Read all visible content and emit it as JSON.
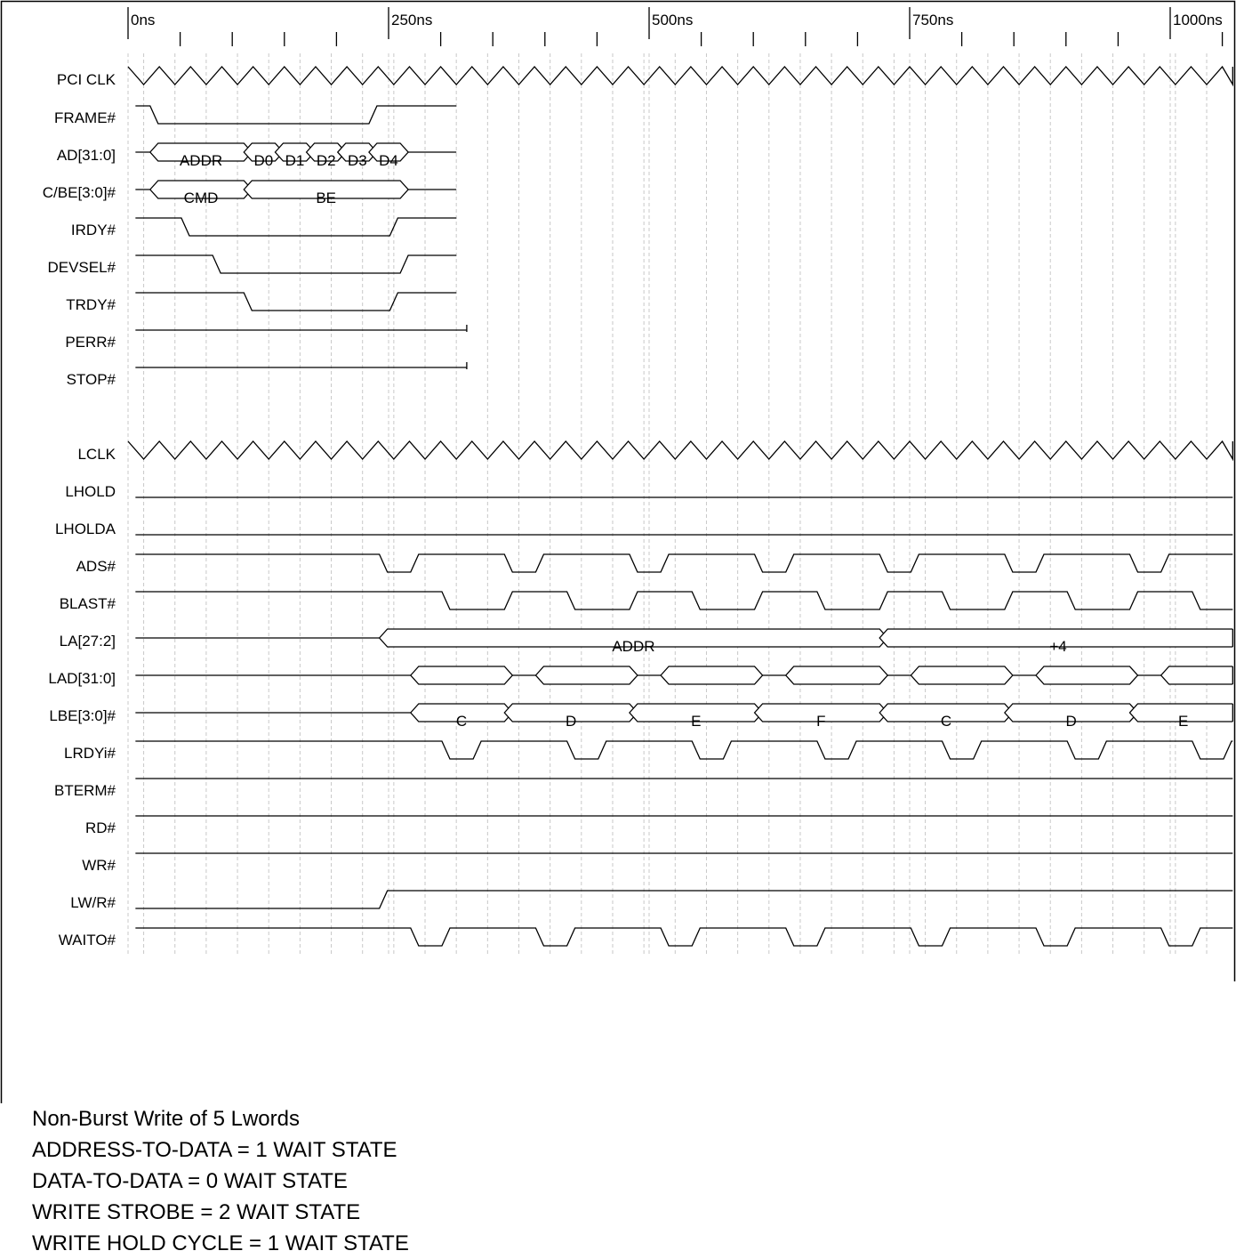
{
  "time_axis": {
    "unit": "ns",
    "majors": [
      {
        "t": 0,
        "label": "0ns"
      },
      {
        "t": 250,
        "label": "250ns"
      },
      {
        "t": 500,
        "label": "500ns"
      },
      {
        "t": 750,
        "label": "750ns"
      },
      {
        "t": 1000,
        "label": "1000ns"
      }
    ],
    "minor_step_ns": 50,
    "grid_step_ns": 30,
    "grid_start_ns": 15,
    "end_ns": 1060
  },
  "clocks": [
    {
      "id": "pci-clk",
      "label": "PCI CLK",
      "period_ns": 30,
      "start_ns": 0
    },
    {
      "id": "lclk",
      "label": "LCLK",
      "period_ns": 30,
      "start_ns": 0
    }
  ],
  "signals": [
    {
      "id": "frame",
      "label": "FRAME#",
      "kind": "level",
      "init": "high",
      "edges": [
        25,
        235
      ],
      "end": 315
    },
    {
      "id": "ad-31-0",
      "label": "AD[31:0]",
      "kind": "bus",
      "end": 315,
      "segments": [
        {
          "from": 25,
          "to": 115,
          "label": "ADDR"
        },
        {
          "from": 115,
          "to": 145,
          "label": "D0"
        },
        {
          "from": 145,
          "to": 175,
          "label": "D1"
        },
        {
          "from": 175,
          "to": 205,
          "label": "D2"
        },
        {
          "from": 205,
          "to": 235,
          "label": "D3"
        },
        {
          "from": 235,
          "to": 265,
          "label": "D4"
        }
      ]
    },
    {
      "id": "c-be-3-0",
      "label": "C/BE[3:0]#",
      "kind": "bus",
      "end": 315,
      "segments": [
        {
          "from": 25,
          "to": 115,
          "label": "CMD"
        },
        {
          "from": 115,
          "to": 265,
          "label": "BE"
        }
      ]
    },
    {
      "id": "irdy",
      "label": "IRDY#",
      "kind": "level",
      "init": "high",
      "edges": [
        55,
        255
      ],
      "end": 315
    },
    {
      "id": "devsel",
      "label": "DEVSEL#",
      "kind": "level",
      "init": "high",
      "edges": [
        85,
        265
      ],
      "end": 315
    },
    {
      "id": "trdy",
      "label": "TRDY#",
      "kind": "level",
      "init": "high",
      "edges": [
        115,
        255
      ],
      "end": 315
    },
    {
      "id": "perr",
      "label": "PERR#",
      "kind": "level",
      "init": "high",
      "edges": [],
      "end": 325,
      "end_tick": true
    },
    {
      "id": "stop",
      "label": "STOP#",
      "kind": "level",
      "init": "high",
      "edges": [],
      "end": 325,
      "end_tick": true
    },
    {
      "id": "lhold",
      "label": "LHOLD",
      "kind": "level",
      "init": "low",
      "edges": [],
      "end": 1060
    },
    {
      "id": "lholda",
      "label": "LHOLDA",
      "kind": "level",
      "init": "low",
      "edges": [],
      "end": 1060
    },
    {
      "id": "ads",
      "label": "ADS#",
      "kind": "level",
      "init": "high",
      "edges": [
        245,
        275,
        365,
        395,
        485,
        515,
        605,
        635,
        725,
        755,
        845,
        875,
        965,
        995
      ],
      "end": 1060
    },
    {
      "id": "blast",
      "label": "BLAST#",
      "kind": "level",
      "init": "high",
      "edges": [
        305,
        365,
        425,
        485,
        545,
        605,
        665,
        725,
        785,
        845,
        905,
        965,
        1025
      ],
      "end": 1060
    },
    {
      "id": "la-27-2",
      "label": "LA[27:2]",
      "kind": "bus",
      "end": 1060,
      "segments": [
        {
          "from": 245,
          "to": 725,
          "label": "ADDR"
        },
        {
          "from": 725,
          "to": 1060,
          "label": "+4"
        }
      ]
    },
    {
      "id": "lad-31-0",
      "label": "LAD[31:0]",
      "kind": "bus",
      "end": 1060,
      "segments": [
        {
          "from": 275,
          "to": 365,
          "label": ""
        },
        {
          "from": 395,
          "to": 485,
          "label": ""
        },
        {
          "from": 515,
          "to": 605,
          "label": ""
        },
        {
          "from": 635,
          "to": 725,
          "label": ""
        },
        {
          "from": 755,
          "to": 845,
          "label": ""
        },
        {
          "from": 875,
          "to": 965,
          "label": ""
        },
        {
          "from": 995,
          "to": 1060,
          "label": ""
        }
      ]
    },
    {
      "id": "lbe-3-0",
      "label": "LBE[3:0]#",
      "kind": "bus",
      "end": 1060,
      "segments": [
        {
          "from": 275,
          "to": 365,
          "label": "C"
        },
        {
          "from": 365,
          "to": 485,
          "label": "D"
        },
        {
          "from": 485,
          "to": 605,
          "label": "E"
        },
        {
          "from": 605,
          "to": 725,
          "label": "F"
        },
        {
          "from": 725,
          "to": 845,
          "label": "C"
        },
        {
          "from": 845,
          "to": 965,
          "label": "D"
        },
        {
          "from": 965,
          "to": 1060,
          "label": "E"
        }
      ]
    },
    {
      "id": "lrdyi",
      "label": "LRDYi#",
      "kind": "level",
      "init": "high",
      "edges": [
        305,
        335,
        425,
        455,
        545,
        575,
        665,
        695,
        785,
        815,
        905,
        935,
        1025,
        1055
      ],
      "end": 1060
    },
    {
      "id": "bterm",
      "label": "BTERM#",
      "kind": "level",
      "init": "high",
      "edges": [],
      "end": 1060
    },
    {
      "id": "rd",
      "label": "RD#",
      "kind": "level",
      "init": "high",
      "edges": [],
      "end": 1060
    },
    {
      "id": "wr",
      "label": "WR#",
      "kind": "level",
      "init": "high",
      "edges": [],
      "end": 1060
    },
    {
      "id": "lw-r",
      "label": "LW/R#",
      "kind": "level",
      "init": "low",
      "edges": [
        245
      ],
      "end": 1060
    },
    {
      "id": "waito",
      "label": "WAITO#",
      "kind": "level",
      "init": "high",
      "edges": [
        275,
        305,
        395,
        425,
        515,
        545,
        635,
        665,
        755,
        785,
        875,
        905,
        995,
        1025
      ],
      "end": 1060
    }
  ],
  "notes": [
    "Non-Burst Write of 5 Lwords",
    "ADDRESS-TO-DATA = 1 WAIT STATE",
    "DATA-TO-DATA = 0 WAIT STATE",
    "WRITE STROBE = 2 WAIT STATE",
    "WRITE HOLD CYCLE = 1 WAIT STATE"
  ]
}
